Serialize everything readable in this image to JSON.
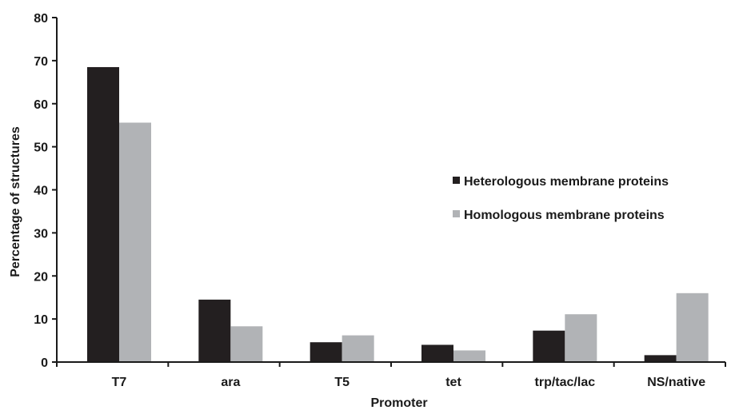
{
  "chart_data": {
    "type": "bar",
    "title": "",
    "xlabel": "Promoter",
    "ylabel": "Percentage of structures",
    "ylim": [
      0,
      80
    ],
    "yticks": [
      0,
      10,
      20,
      30,
      40,
      50,
      60,
      70,
      80
    ],
    "grid": false,
    "legend_position": "right",
    "categories": [
      "T7",
      "ara",
      "T5",
      "tet",
      "trp/tac/lac",
      "NS/native"
    ],
    "series": [
      {
        "name": "Heterologous membrane proteins",
        "color": "#231f20",
        "values": [
          68.5,
          14.5,
          4.6,
          4.0,
          7.3,
          1.6
        ]
      },
      {
        "name": "Homologous membrane proteins",
        "color": "#b1b3b6",
        "values": [
          55.6,
          8.3,
          6.2,
          2.7,
          11.1,
          16.0
        ]
      }
    ]
  }
}
